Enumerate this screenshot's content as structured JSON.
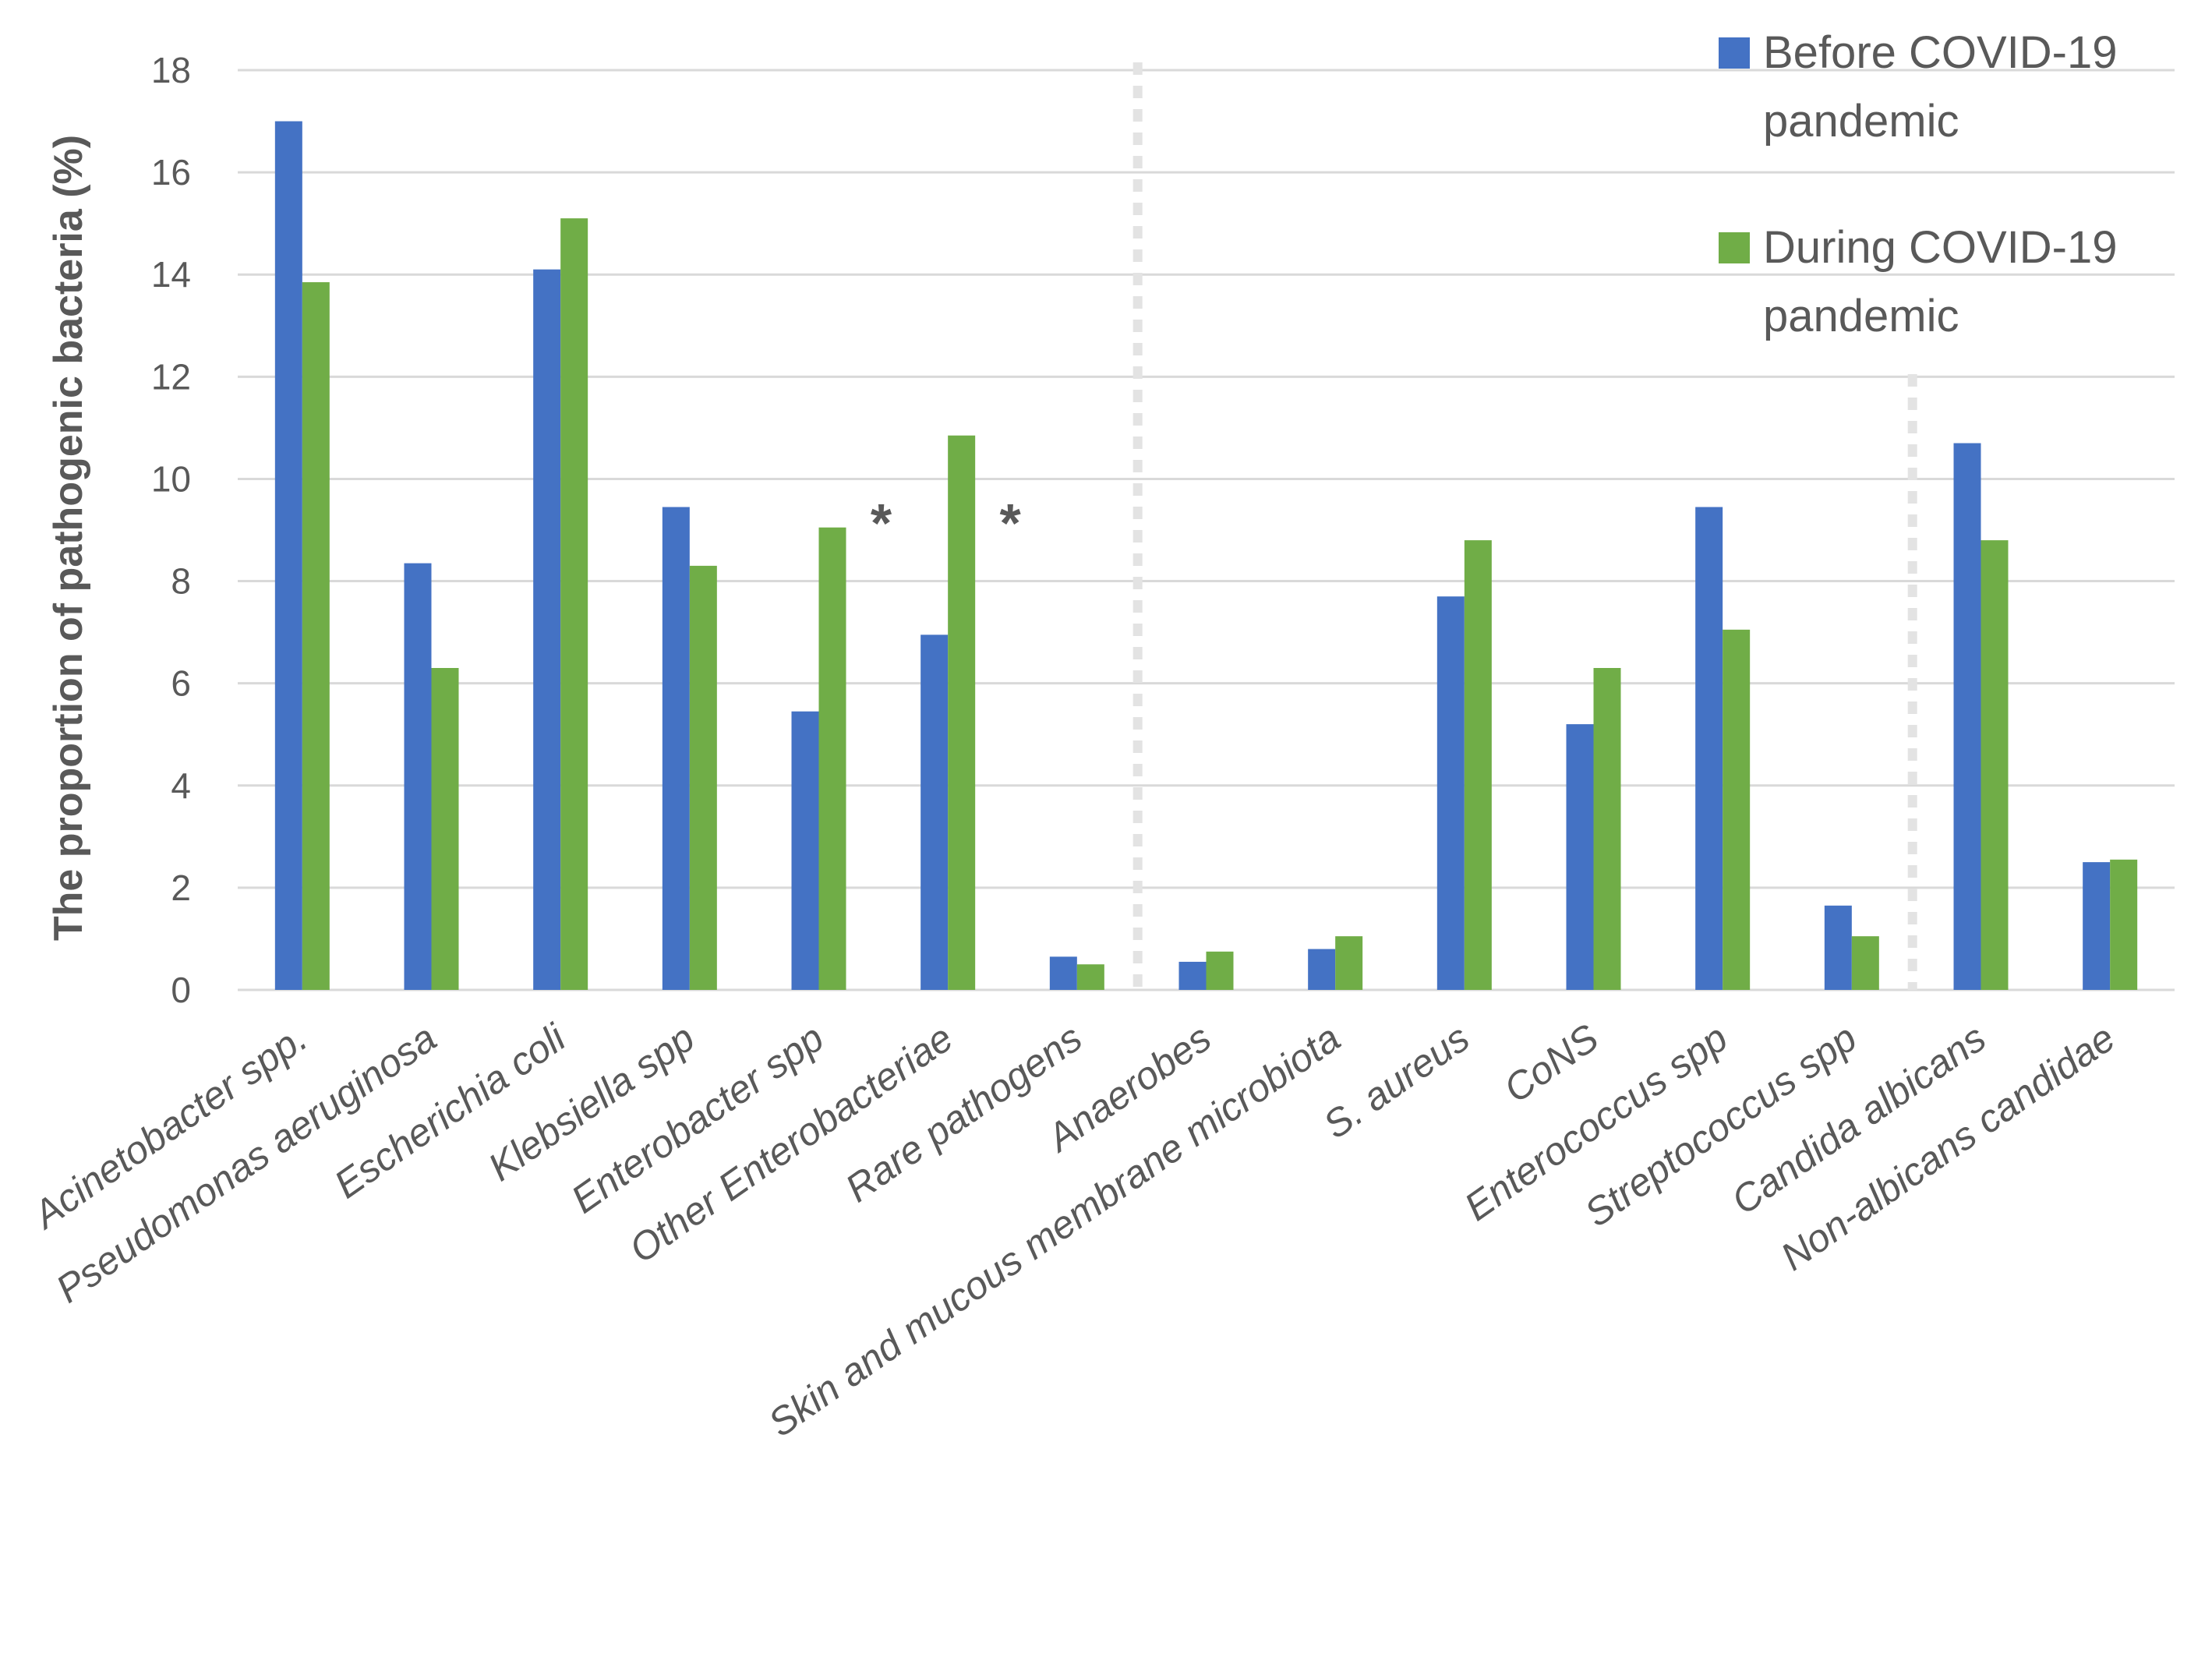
{
  "chart_data": {
    "type": "bar",
    "title": "",
    "xlabel": "",
    "ylabel": "The proportion of pathogenic bacteria (%)",
    "ylim": [
      0,
      18
    ],
    "yticks": [
      0,
      2,
      4,
      6,
      8,
      10,
      12,
      14,
      16,
      18
    ],
    "grid": true,
    "legend_position": "top-right",
    "categories": [
      "Acinetobacter spp.",
      "Pseudomonas aeruginosa",
      "Escherichia coli",
      "Klebsiella spp",
      "Enterobacter spp",
      "Other Enterobacteriae",
      "Rare pathogens",
      "Anaerobes",
      "Skin and mucous membrane microbiota",
      "S. aureus",
      "CoNS",
      "Enterococcus spp",
      "Streptococcus spp",
      "Candida albicans",
      "Non-albicans candidae"
    ],
    "series": [
      {
        "name": "Before COVID-19 pandemic",
        "legend_lines": [
          "Before COVID-19",
          "pandemic"
        ],
        "color": "#4472C4",
        "values": [
          17.0,
          8.35,
          14.1,
          9.45,
          5.45,
          6.95,
          0.65,
          0.55,
          0.8,
          7.7,
          5.2,
          9.45,
          1.65,
          10.7,
          2.5
        ]
      },
      {
        "name": "During COVID-19 pandemic",
        "legend_lines": [
          "During COVID-19",
          "pandemic"
        ],
        "color": "#70AD47",
        "values": [
          13.85,
          6.3,
          15.1,
          8.3,
          9.05,
          10.85,
          0.5,
          0.75,
          1.05,
          8.8,
          6.3,
          7.05,
          1.05,
          8.8,
          2.55
        ]
      }
    ],
    "annotations": [
      {
        "text": "*",
        "category": "Enterobacter spp"
      },
      {
        "text": "*",
        "category": "Other Enterobacteriae"
      }
    ]
  }
}
